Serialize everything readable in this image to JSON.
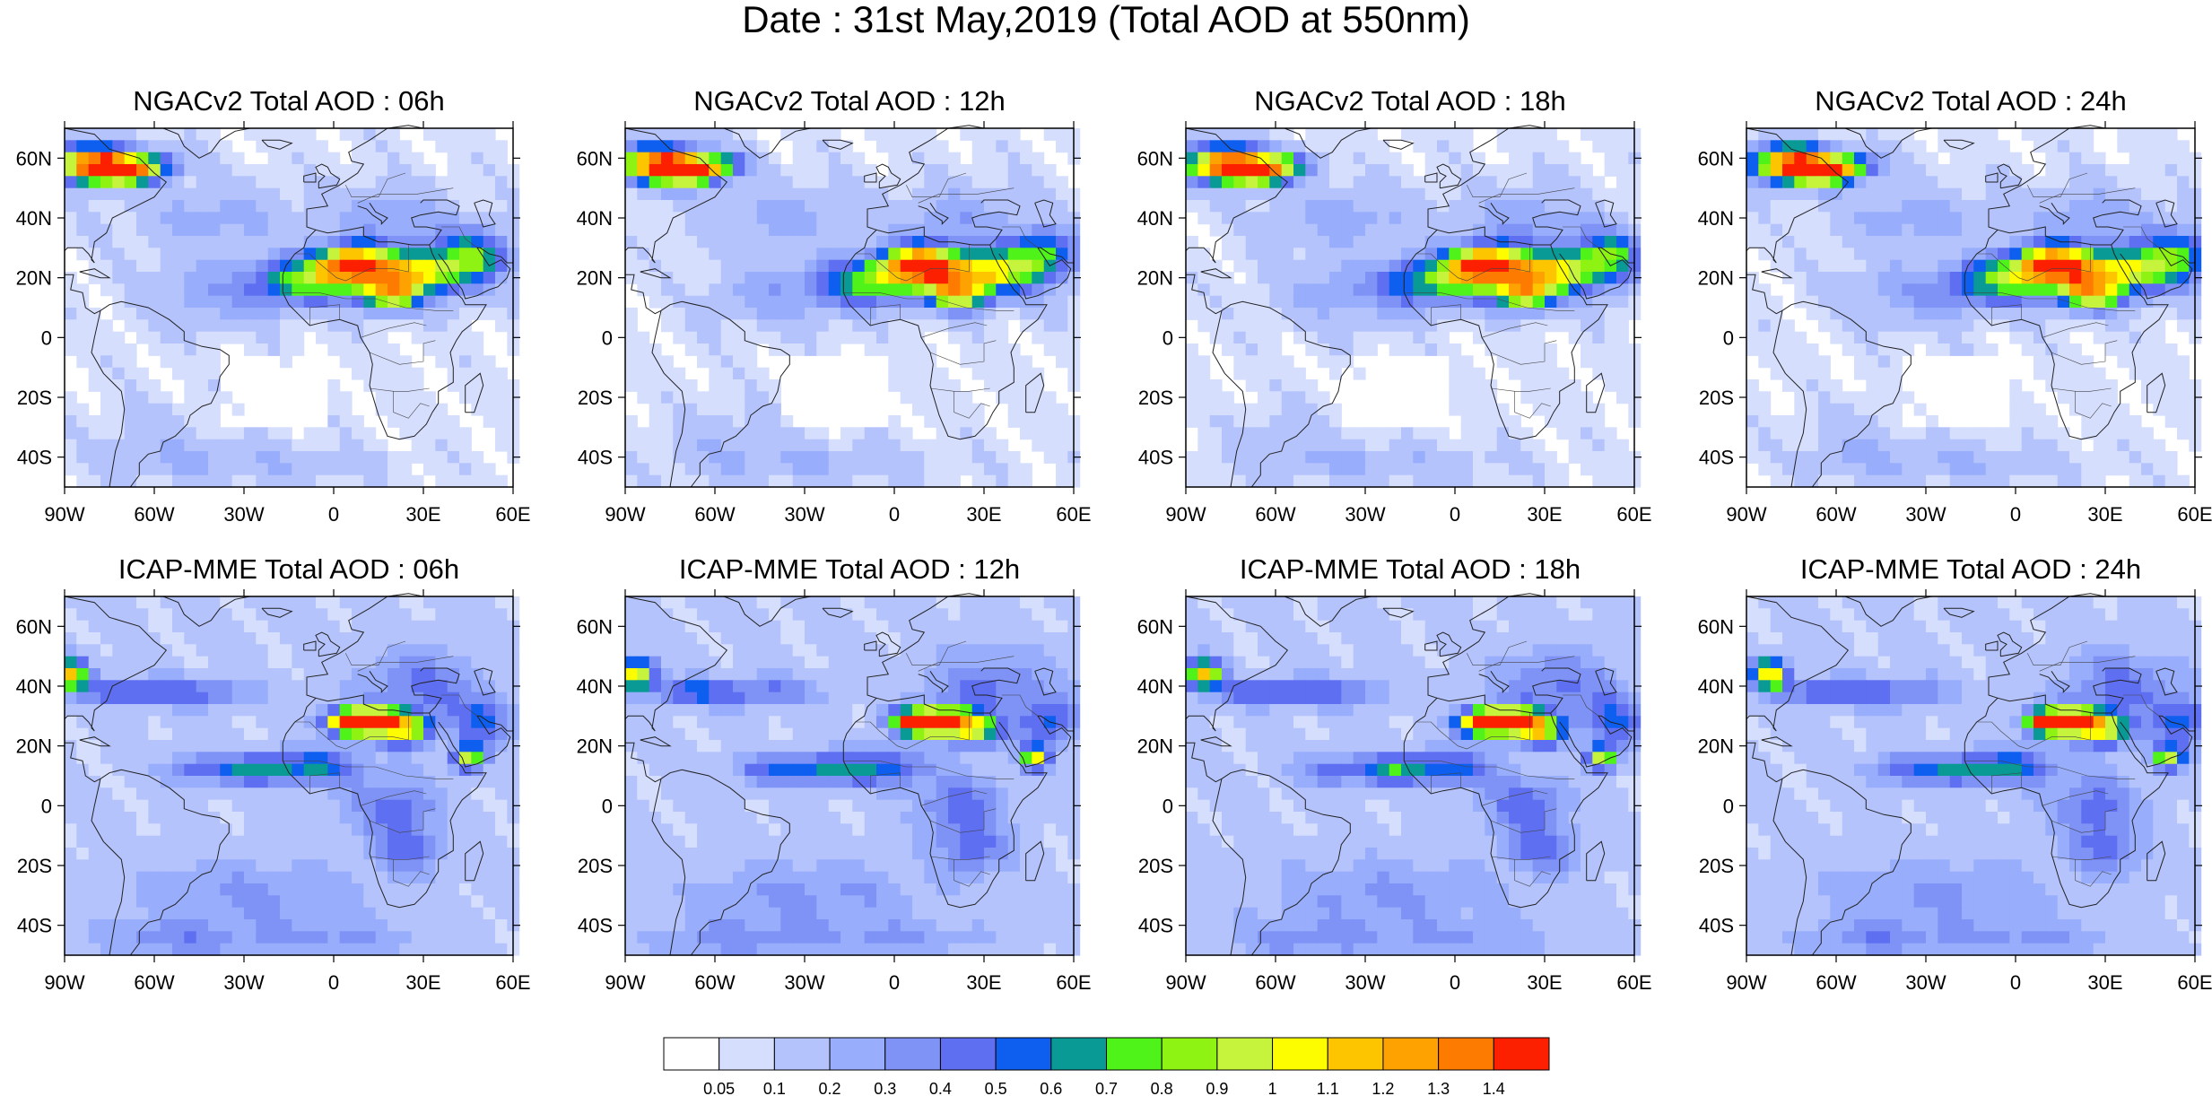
{
  "figure": {
    "title": "Date : 31st May,2019 (Total AOD at 550nm)"
  },
  "panels": [
    {
      "title": "NGACv2 Total AOD : 06h",
      "model": "NGACv2",
      "lead": "06h"
    },
    {
      "title": "NGACv2 Total AOD : 12h",
      "model": "NGACv2",
      "lead": "12h"
    },
    {
      "title": "NGACv2 Total AOD : 18h",
      "model": "NGACv2",
      "lead": "18h"
    },
    {
      "title": "NGACv2 Total AOD : 24h",
      "model": "NGACv2",
      "lead": "24h"
    },
    {
      "title": "ICAP-MME Total AOD : 06h",
      "model": "ICAP-MME",
      "lead": "06h"
    },
    {
      "title": "ICAP-MME Total AOD : 12h",
      "model": "ICAP-MME",
      "lead": "12h"
    },
    {
      "title": "ICAP-MME Total AOD : 18h",
      "model": "ICAP-MME",
      "lead": "18h"
    },
    {
      "title": "ICAP-MME Total AOD : 24h",
      "model": "ICAP-MME",
      "lead": "24h"
    }
  ],
  "map_extent": {
    "lon_range": [
      -90,
      60
    ],
    "lat_range": [
      -50,
      70
    ],
    "lon_ticks": [
      "90W",
      "60W",
      "30W",
      "0",
      "30E",
      "60E"
    ],
    "lat_ticks": [
      "60N",
      "40N",
      "20N",
      "0",
      "20S",
      "40S"
    ]
  },
  "colorbar": {
    "labels": [
      "0.05",
      "0.1",
      "0.2",
      "0.3",
      "0.4",
      "0.5",
      "0.6",
      "0.7",
      "0.8",
      "0.9",
      "1",
      "1.1",
      "1.2",
      "1.3",
      "1.4"
    ],
    "colors": [
      "#ffffff",
      "#d6defe",
      "#b5c3fd",
      "#98adfb",
      "#7f92f6",
      "#5f6ff1",
      "#0e5ef0",
      "#0a9a96",
      "#4ff31a",
      "#8ef312",
      "#c6f43c",
      "#fdfd00",
      "#fdc400",
      "#fda200",
      "#fd7b00",
      "#fd2000"
    ]
  }
}
